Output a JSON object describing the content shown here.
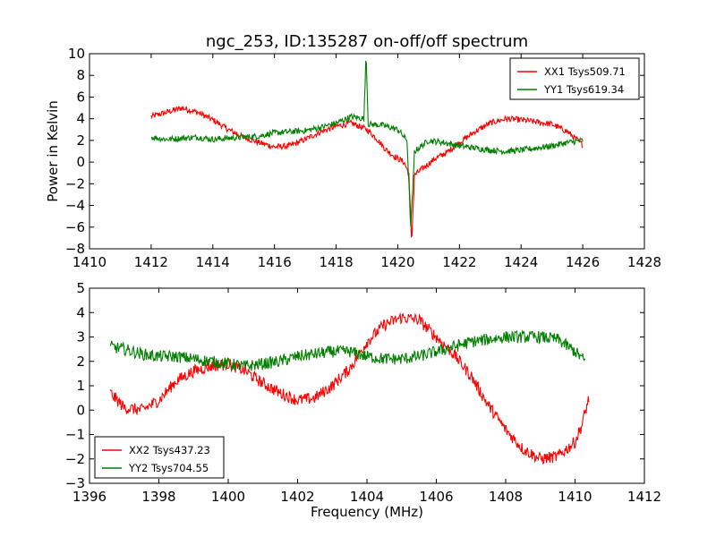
{
  "figure": {
    "title": "ngc_253, ID:135287 on-off/off spectrum",
    "xlabel": "Frequency (MHz)",
    "ylabel": "Power in Kelvin"
  },
  "colors": {
    "red": "#ff0000",
    "green": "#007f00"
  },
  "chart_data": [
    {
      "type": "line",
      "xlim": [
        1410,
        1428
      ],
      "ylim": [
        -8,
        10
      ],
      "xticks": [
        1410,
        1412,
        1414,
        1416,
        1418,
        1420,
        1422,
        1424,
        1426,
        1428
      ],
      "yticks": [
        -8,
        -6,
        -4,
        -2,
        0,
        2,
        4,
        6,
        8,
        10
      ],
      "ylabel": "Power in Kelvin",
      "grid": false,
      "legend_position": "top-right",
      "series": [
        {
          "name": "XX1 Tsys509.71",
          "color": "#ff0000",
          "points": [
            [
              1412.0,
              4.2
            ],
            [
              1412.5,
              4.6
            ],
            [
              1413.0,
              5.0
            ],
            [
              1413.5,
              4.6
            ],
            [
              1414.0,
              3.9
            ],
            [
              1414.5,
              3.0
            ],
            [
              1415.0,
              2.3
            ],
            [
              1415.5,
              1.8
            ],
            [
              1416.0,
              1.4
            ],
            [
              1416.5,
              1.5
            ],
            [
              1417.0,
              2.1
            ],
            [
              1417.5,
              2.8
            ],
            [
              1418.0,
              3.3
            ],
            [
              1418.5,
              3.6
            ],
            [
              1419.0,
              3.0
            ],
            [
              1419.3,
              2.2
            ],
            [
              1419.6,
              1.2
            ],
            [
              1419.9,
              0.5
            ],
            [
              1420.2,
              0.0
            ],
            [
              1420.35,
              -1.0
            ],
            [
              1420.45,
              -6.8
            ],
            [
              1420.55,
              -1.2
            ],
            [
              1420.8,
              -0.6
            ],
            [
              1421.2,
              0.3
            ],
            [
              1421.6,
              0.9
            ],
            [
              1422.0,
              1.8
            ],
            [
              1422.5,
              2.8
            ],
            [
              1423.0,
              3.6
            ],
            [
              1423.5,
              4.0
            ],
            [
              1424.0,
              3.9
            ],
            [
              1424.5,
              3.7
            ],
            [
              1425.0,
              3.5
            ],
            [
              1425.5,
              2.8
            ],
            [
              1426.0,
              1.6
            ]
          ]
        },
        {
          "name": "YY1 Tsys619.34",
          "color": "#007f00",
          "points": [
            [
              1412.0,
              2.3
            ],
            [
              1412.5,
              2.1
            ],
            [
              1413.0,
              2.2
            ],
            [
              1413.5,
              2.3
            ],
            [
              1414.0,
              2.1
            ],
            [
              1414.5,
              2.2
            ],
            [
              1415.0,
              2.3
            ],
            [
              1415.5,
              2.4
            ],
            [
              1416.0,
              2.7
            ],
            [
              1416.5,
              2.8
            ],
            [
              1417.0,
              2.9
            ],
            [
              1417.5,
              3.2
            ],
            [
              1418.0,
              3.6
            ],
            [
              1418.5,
              4.2
            ],
            [
              1418.9,
              4.0
            ],
            [
              1418.97,
              9.4
            ],
            [
              1419.05,
              3.5
            ],
            [
              1419.5,
              3.4
            ],
            [
              1420.0,
              3.0
            ],
            [
              1420.3,
              2.0
            ],
            [
              1420.42,
              -6.0
            ],
            [
              1420.55,
              1.0
            ],
            [
              1421.0,
              2.0
            ],
            [
              1421.5,
              1.8
            ],
            [
              1422.0,
              1.5
            ],
            [
              1422.5,
              1.3
            ],
            [
              1423.0,
              1.1
            ],
            [
              1423.5,
              1.0
            ],
            [
              1424.0,
              1.1
            ],
            [
              1424.5,
              1.3
            ],
            [
              1425.0,
              1.5
            ],
            [
              1425.5,
              1.8
            ],
            [
              1426.0,
              2.0
            ]
          ]
        }
      ]
    },
    {
      "type": "line",
      "xlim": [
        1396,
        1412
      ],
      "ylim": [
        -3,
        5
      ],
      "xticks": [
        1396,
        1398,
        1400,
        1402,
        1404,
        1406,
        1408,
        1410,
        1412
      ],
      "yticks": [
        -3,
        -2,
        -1,
        0,
        1,
        2,
        3,
        4,
        5
      ],
      "xlabel": "Frequency (MHz)",
      "grid": false,
      "legend_position": "bottom-left",
      "series": [
        {
          "name": "XX2 Tsys437.23",
          "color": "#ff0000",
          "points": [
            [
              1396.6,
              0.7
            ],
            [
              1397.0,
              0.1
            ],
            [
              1397.5,
              0.0
            ],
            [
              1398.0,
              0.4
            ],
            [
              1398.5,
              1.2
            ],
            [
              1399.0,
              1.6
            ],
            [
              1399.5,
              1.8
            ],
            [
              1400.0,
              1.9
            ],
            [
              1400.5,
              1.6
            ],
            [
              1401.0,
              1.1
            ],
            [
              1401.5,
              0.7
            ],
            [
              1402.0,
              0.4
            ],
            [
              1402.5,
              0.5
            ],
            [
              1403.0,
              1.0
            ],
            [
              1403.5,
              1.7
            ],
            [
              1404.0,
              2.8
            ],
            [
              1404.5,
              3.5
            ],
            [
              1405.0,
              3.8
            ],
            [
              1405.5,
              3.7
            ],
            [
              1406.0,
              3.0
            ],
            [
              1406.5,
              2.3
            ],
            [
              1407.0,
              1.4
            ],
            [
              1407.5,
              0.2
            ],
            [
              1408.0,
              -0.8
            ],
            [
              1408.5,
              -1.6
            ],
            [
              1409.0,
              -2.0
            ],
            [
              1409.5,
              -1.9
            ],
            [
              1410.0,
              -1.3
            ],
            [
              1410.2,
              -0.6
            ],
            [
              1410.4,
              0.5
            ]
          ]
        },
        {
          "name": "YY2 Tsys704.55",
          "color": "#007f00",
          "points": [
            [
              1396.6,
              2.6
            ],
            [
              1397.0,
              2.5
            ],
            [
              1397.5,
              2.3
            ],
            [
              1398.0,
              2.2
            ],
            [
              1398.5,
              2.2
            ],
            [
              1399.0,
              2.1
            ],
            [
              1399.5,
              2.0
            ],
            [
              1400.0,
              1.9
            ],
            [
              1400.5,
              1.8
            ],
            [
              1401.0,
              1.9
            ],
            [
              1401.5,
              2.0
            ],
            [
              1402.0,
              2.2
            ],
            [
              1402.5,
              2.3
            ],
            [
              1403.0,
              2.4
            ],
            [
              1403.5,
              2.4
            ],
            [
              1404.0,
              2.2
            ],
            [
              1404.5,
              2.1
            ],
            [
              1405.0,
              2.1
            ],
            [
              1405.5,
              2.2
            ],
            [
              1406.0,
              2.4
            ],
            [
              1406.5,
              2.6
            ],
            [
              1407.0,
              2.8
            ],
            [
              1407.5,
              2.9
            ],
            [
              1408.0,
              3.0
            ],
            [
              1408.5,
              3.0
            ],
            [
              1409.0,
              3.0
            ],
            [
              1409.5,
              2.9
            ],
            [
              1410.0,
              2.4
            ],
            [
              1410.3,
              2.0
            ]
          ]
        }
      ]
    }
  ]
}
